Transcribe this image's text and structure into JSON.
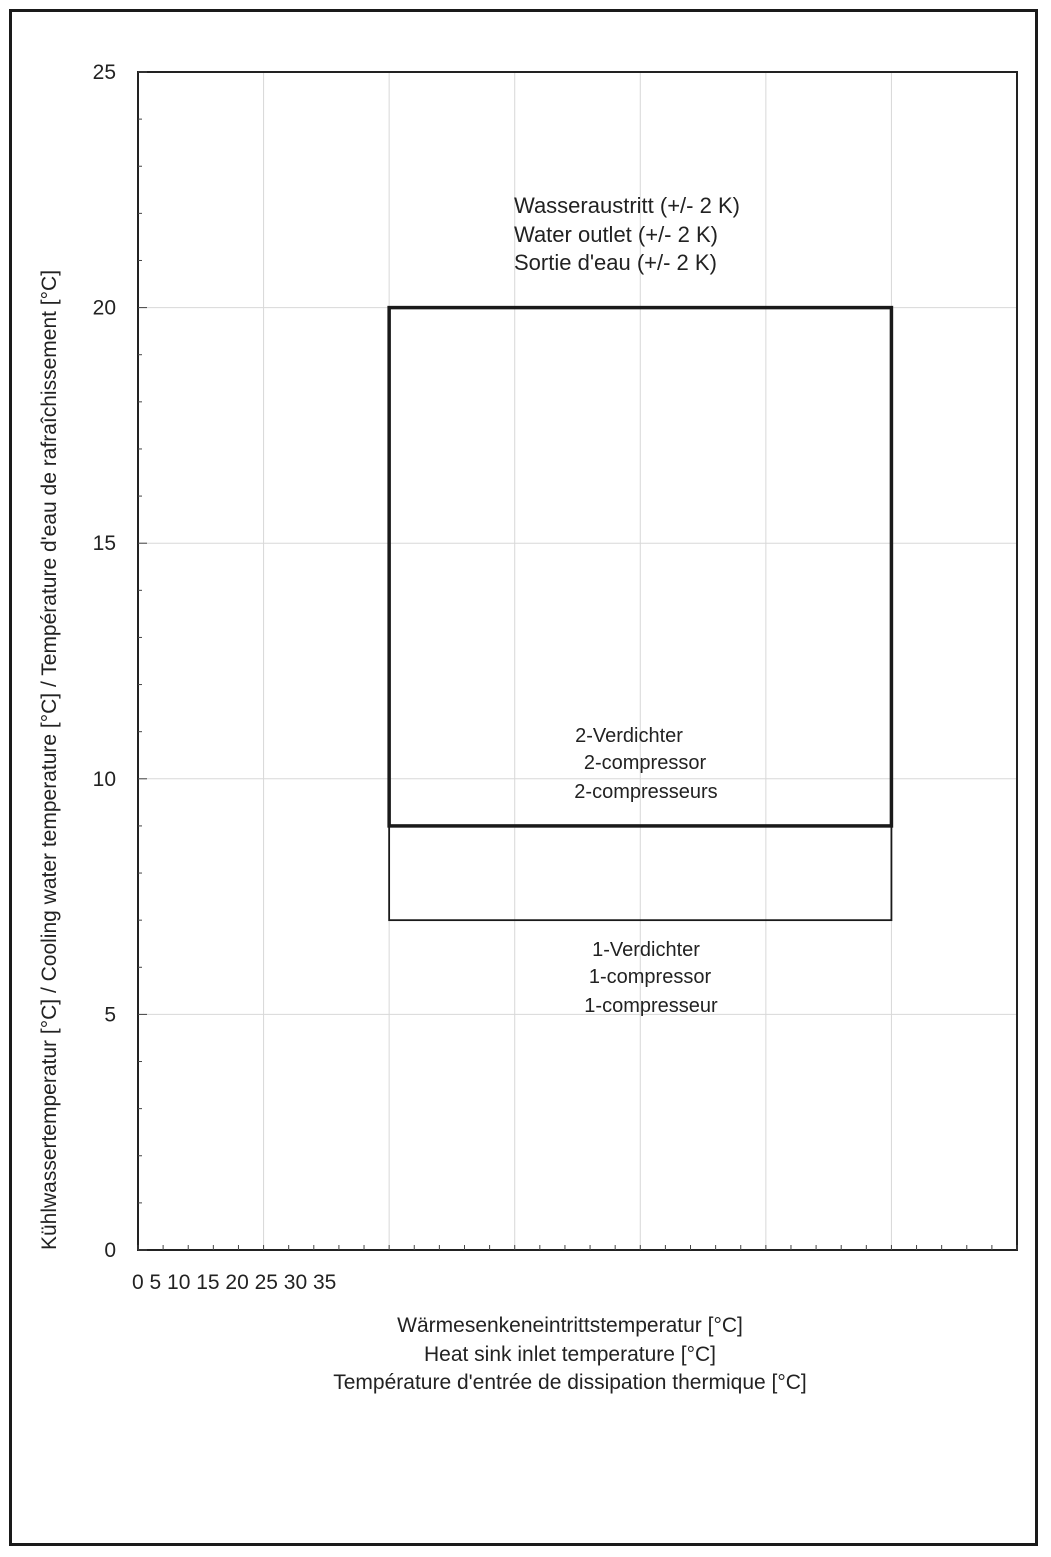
{
  "chart_data": {
    "type": "area",
    "xlim": [
      0,
      35
    ],
    "ylim": [
      0,
      25
    ],
    "y_ticks": [
      "0",
      "5",
      "10",
      "15",
      "20",
      "25"
    ],
    "x_tick_labels_text": "0 5 10 15 20 25 30 35",
    "ylabel": "Kühlwassertemperatur [°C]  /  Cooling water temperature [°C]  /  Température d'eau de rafraîchissement [°C]",
    "xlabel": [
      "Wärmesenkeneintrittstemperatur [°C]",
      "Heat sink inlet temperature [°C]",
      "Température d'entrée de dissipation thermique [°C]"
    ],
    "grid": true,
    "regions": [
      {
        "name": "2-compressor",
        "x_range": [
          10,
          30
        ],
        "y_range": [
          9,
          20
        ],
        "label": [
          "2-Verdichter",
          "2-compressor",
          "2-compresseurs"
        ]
      },
      {
        "name": "1-compressor",
        "x_range": [
          10,
          30
        ],
        "y_range": [
          7,
          9
        ],
        "label": [
          "1-Verdichter",
          "1-compressor",
          "1-compresseur"
        ]
      }
    ],
    "annotation_top": [
      "Wasseraustritt  (+/- 2 K)",
      "Water outlet (+/- 2 K)",
      "Sortie d'eau (+/- 2 K)"
    ]
  }
}
